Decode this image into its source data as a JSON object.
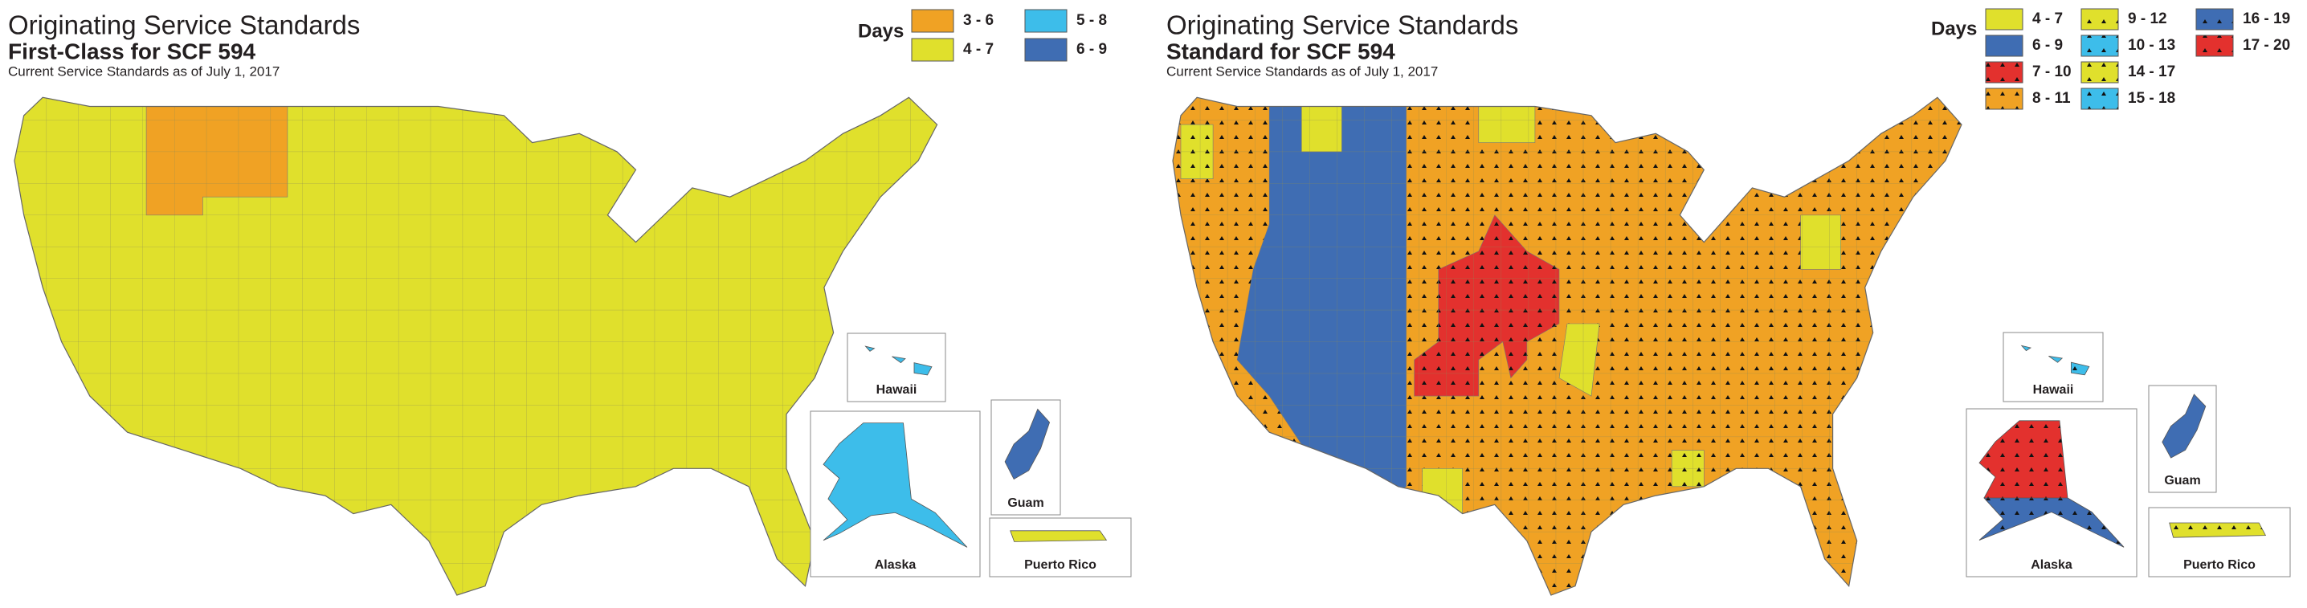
{
  "maps": [
    {
      "title": "Originating Service Standards",
      "subtitle": "First-Class for SCF 594",
      "note": "Current Service Standards as of July 1, 2017",
      "legend": {
        "title": "Days",
        "items": [
          {
            "label": "3 - 6",
            "color": "#f0a224",
            "pattern": false
          },
          {
            "label": "4 - 7",
            "color": "#e0e02c",
            "pattern": false
          },
          {
            "label": "5 - 8",
            "color": "#3dbdea",
            "pattern": false
          },
          {
            "label": "6 - 9",
            "color": "#3f6db3",
            "pattern": false
          }
        ]
      },
      "insets": [
        "Hawaii",
        "Alaska",
        "Guam",
        "Puerto Rico"
      ]
    },
    {
      "title": "Originating Service Standards",
      "subtitle": "Standard for SCF 594",
      "note": "Current Service Standards as of July 1, 2017",
      "legend": {
        "title": "Days",
        "items": [
          {
            "label": "4 - 7",
            "color": "#e0e02c",
            "pattern": false
          },
          {
            "label": "6 - 9",
            "color": "#3f6db3",
            "pattern": false
          },
          {
            "label": "7 - 10",
            "color": "#e3312e",
            "pattern": true
          },
          {
            "label": "8 - 11",
            "color": "#f0a224",
            "pattern": true
          },
          {
            "label": "9 - 12",
            "color": "#e0e02c",
            "pattern": true
          },
          {
            "label": "10 - 13",
            "color": "#3dbdea",
            "pattern": true
          },
          {
            "label": "14 - 17",
            "color": "#e0e02c",
            "pattern": true
          },
          {
            "label": "15 - 18",
            "color": "#3dbdea",
            "pattern": true
          },
          {
            "label": "16 - 19",
            "color": "#3f6db3",
            "pattern": true
          },
          {
            "label": "17 - 20",
            "color": "#e3312e",
            "pattern": true
          }
        ]
      },
      "insets": [
        "Hawaii",
        "Alaska",
        "Guam",
        "Puerto Rico"
      ]
    }
  ]
}
